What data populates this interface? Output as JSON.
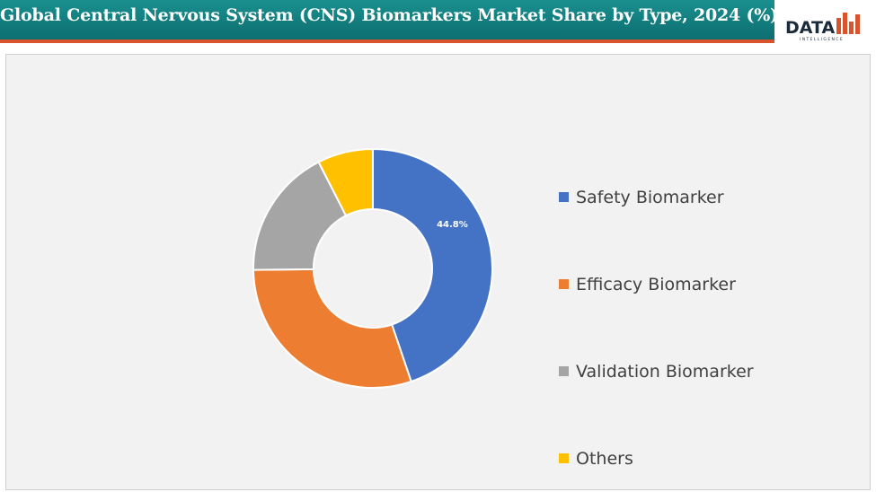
{
  "header": {
    "title": "Global Central Nervous System (CNS) Biomarkers Market Share by Type, 2024 (%)"
  },
  "logo": {
    "word": "DATA",
    "tagline": "INTELLIGENCE",
    "icon": "bar-chart-logo-icon"
  },
  "colors": {
    "header": "#128282",
    "accent": "#d9532c",
    "safety": "#4472c4",
    "efficacy": "#ed7d31",
    "validation": "#a5a5a5",
    "others": "#ffc000"
  },
  "chart_data": {
    "type": "pie",
    "variant": "donut",
    "title": "Global Central Nervous System (CNS) Biomarkers Market Share by Type, 2024 (%)",
    "unit": "%",
    "legend_position": "right",
    "slices": [
      {
        "name": "Safety Biomarker",
        "value": 44.8,
        "label": "44.8%",
        "color": "#4472c4"
      },
      {
        "name": "Efficacy Biomarker",
        "value": 30.0,
        "label": "",
        "color": "#ed7d31"
      },
      {
        "name": "Validation Biomarker",
        "value": 17.7,
        "label": "",
        "color": "#a5a5a5"
      },
      {
        "name": "Others",
        "value": 7.5,
        "label": "",
        "color": "#ffc000"
      }
    ]
  }
}
